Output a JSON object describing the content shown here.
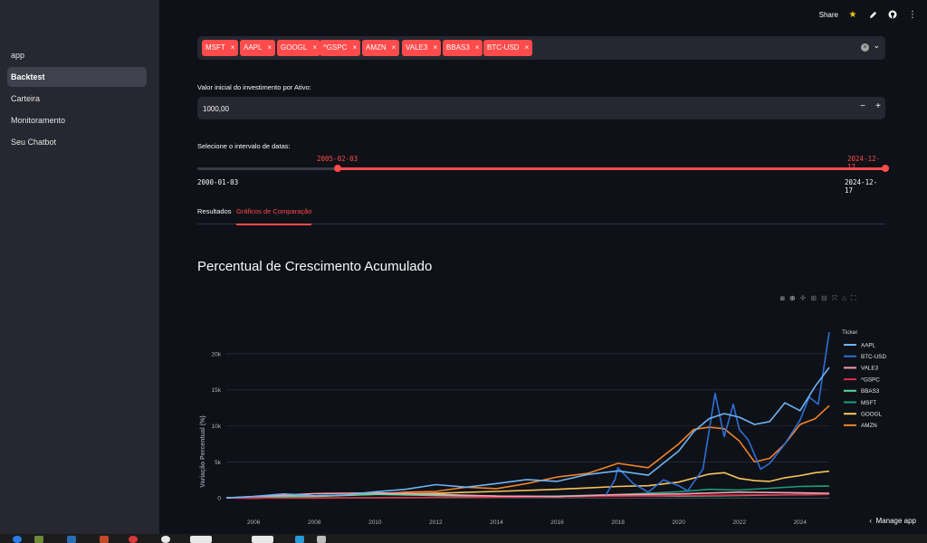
{
  "sidebar": {
    "items": [
      {
        "label": "app",
        "active": false
      },
      {
        "label": "Backtest",
        "active": true
      },
      {
        "label": "Carteira",
        "active": false
      },
      {
        "label": "Monitoramento",
        "active": false
      },
      {
        "label": "Seu Chatbot",
        "active": false
      }
    ]
  },
  "topbar": {
    "share_label": "Share"
  },
  "tickers": {
    "selected": [
      "MSFT",
      "AAPL",
      "GOOGL",
      "^GSPC",
      "AMZN",
      "VALE3",
      "BBAS3",
      "BTC-USD"
    ],
    "remove_glyph": "×"
  },
  "investment": {
    "label": "Valor inicial do investimento por Ativo:",
    "value": "1000,00",
    "minus": "−",
    "plus": "+"
  },
  "dates": {
    "label": "Selecione o intervalo de datas:",
    "selected_start": "2005-02-03",
    "selected_end": "2024-12-17",
    "min": "2000-01-03",
    "max": "2024-12-17"
  },
  "tabs": [
    {
      "label": "Resultados",
      "active": false
    },
    {
      "label": "Gráficos de Comparação",
      "active": true
    }
  ],
  "chart_title": "Percentual de Crescimento Acumulado",
  "manage_app": "Manage app",
  "colors": {
    "accent": "#ff4b4b",
    "background": "#0e1117",
    "sidebar": "#262730"
  },
  "chart_data": {
    "type": "line",
    "ylabel": "Variação Percentual (%)",
    "legend_title": "Ticker",
    "legend_position": "right",
    "xlim": [
      2005.1,
      2024.96
    ],
    "ylim": [
      -600,
      23500
    ],
    "x_ticks": [
      2006,
      2008,
      2010,
      2012,
      2014,
      2016,
      2018,
      2020,
      2022,
      2024
    ],
    "y_ticks": [
      0,
      5000,
      10000,
      15000,
      20000
    ],
    "y_tick_labels": [
      "0",
      "5k",
      "10k",
      "15k",
      "20k"
    ],
    "grid": true,
    "series": [
      {
        "name": "AAPL",
        "color": "#6cb4f5",
        "x": [
          2005.1,
          2006,
          2007,
          2008,
          2009,
          2010,
          2011,
          2012,
          2013,
          2014,
          2015,
          2016,
          2017,
          2018,
          2019,
          2020,
          2020.5,
          2021,
          2021.5,
          2022,
          2022.5,
          2023,
          2023.5,
          2024,
          2024.5,
          2024.96
        ],
        "y": [
          0,
          200,
          550,
          300,
          400,
          850,
          1200,
          1850,
          1500,
          2000,
          2550,
          2300,
          3250,
          3750,
          3150,
          6500,
          9200,
          11000,
          11700,
          11200,
          10200,
          10600,
          13200,
          12100,
          15500,
          18100
        ]
      },
      {
        "name": "BTC-USD",
        "color": "#2f6fd6",
        "x": [
          2017.6,
          2017.9,
          2018,
          2018.5,
          2019,
          2019.5,
          2020,
          2020.3,
          2020.8,
          2021.2,
          2021.5,
          2021.8,
          2022,
          2022.3,
          2022.7,
          2023,
          2023.5,
          2024,
          2024.3,
          2024.6,
          2024.96
        ],
        "y": [
          400,
          2500,
          4200,
          2000,
          800,
          2500,
          1700,
          1000,
          4000,
          14500,
          8500,
          13000,
          9500,
          8000,
          4000,
          4800,
          7500,
          10800,
          14000,
          13000,
          23000
        ]
      },
      {
        "name": "VALE3",
        "color": "#f2a0b0",
        "x": [
          2005.1,
          2008,
          2010,
          2012,
          2014,
          2016,
          2018,
          2020,
          2022,
          2024,
          2024.96
        ],
        "y": [
          0,
          600,
          700,
          500,
          250,
          200,
          450,
          550,
          800,
          700,
          650
        ]
      },
      {
        "name": "^GSPC",
        "color": "#d62f4b",
        "x": [
          2005.1,
          2008,
          2010,
          2012,
          2014,
          2016,
          2018,
          2020,
          2022,
          2024,
          2024.96
        ],
        "y": [
          0,
          -20,
          10,
          60,
          120,
          180,
          250,
          320,
          420,
          480,
          520
        ]
      },
      {
        "name": "BBAS3",
        "color": "#5cd69c",
        "x": [
          2005.1,
          2008,
          2010,
          2012,
          2014,
          2016,
          2018,
          2020,
          2022,
          2024,
          2024.96
        ],
        "y": [
          0,
          300,
          500,
          350,
          250,
          150,
          350,
          250,
          350,
          450,
          500
        ]
      },
      {
        "name": "MSFT",
        "color": "#1f9e7d",
        "x": [
          2005.1,
          2008,
          2010,
          2012,
          2014,
          2016,
          2018,
          2020,
          2021,
          2022,
          2023,
          2024,
          2024.96
        ],
        "y": [
          0,
          20,
          30,
          60,
          150,
          250,
          450,
          850,
          1200,
          1100,
          1350,
          1600,
          1650
        ]
      },
      {
        "name": "GOOGL",
        "color": "#f7c55a",
        "x": [
          2005.1,
          2007,
          2008,
          2010,
          2012,
          2014,
          2016,
          2018,
          2019,
          2020,
          2021,
          2021.5,
          2022,
          2022.5,
          2023,
          2023.5,
          2024,
          2024.5,
          2024.96
        ],
        "y": [
          0,
          400,
          250,
          500,
          650,
          900,
          1200,
          1600,
          1700,
          2200,
          3300,
          3500,
          2700,
          2400,
          2300,
          2800,
          3100,
          3500,
          3700
        ]
      },
      {
        "name": "AMZN",
        "color": "#f0832a",
        "x": [
          2005.1,
          2006,
          2008,
          2010,
          2011,
          2012,
          2013,
          2014,
          2015,
          2016,
          2017,
          2018,
          2019,
          2020,
          2020.5,
          2021,
          2021.5,
          2022,
          2022.5,
          2023,
          2023.5,
          2024,
          2024.5,
          2024.96
        ],
        "y": [
          0,
          -50,
          200,
          500,
          800,
          900,
          1500,
          1300,
          2000,
          2900,
          3400,
          4800,
          4200,
          7500,
          9500,
          9800,
          9600,
          7900,
          5000,
          5500,
          7500,
          10200,
          11000,
          12800
        ]
      }
    ]
  }
}
